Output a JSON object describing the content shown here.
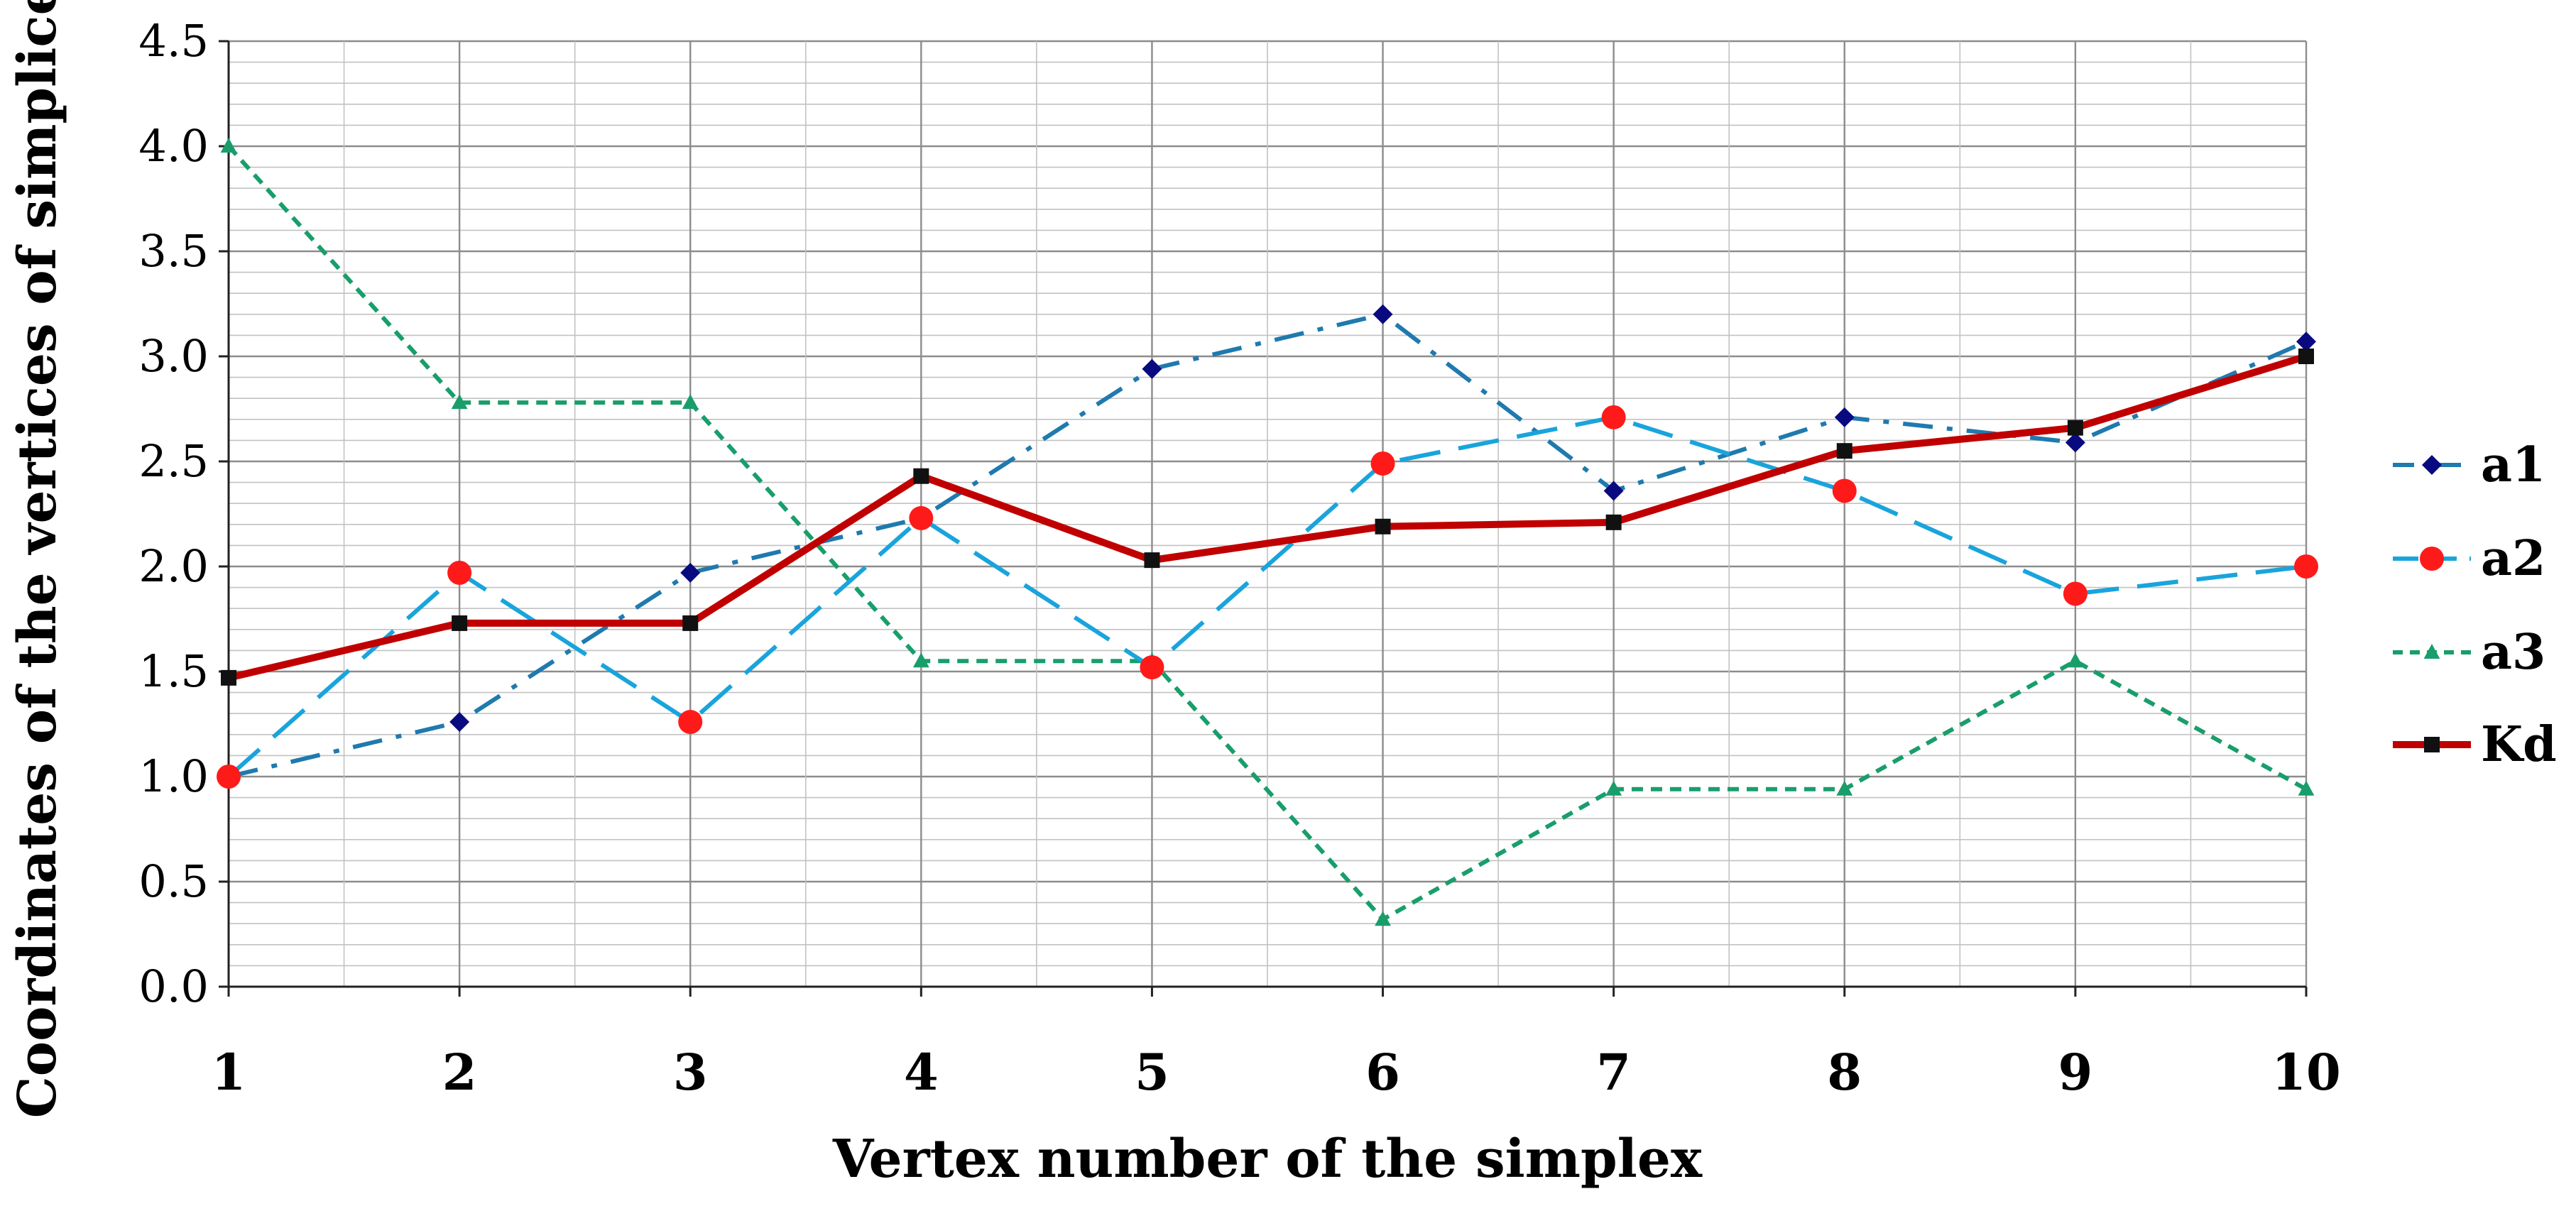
{
  "chart_data": {
    "type": "line",
    "title": "",
    "xlabel": "Vertex number of the simplex",
    "ylabel": "Coordinates of the vertices of simplices",
    "x": [
      1,
      2,
      3,
      4,
      5,
      6,
      7,
      8,
      9,
      10
    ],
    "x_tick_labels": [
      "1",
      "2",
      "3",
      "4",
      "5",
      "6",
      "7",
      "8",
      "9",
      "10"
    ],
    "ylim": [
      0,
      4.5
    ],
    "y_major_step": 0.5,
    "y_minor_step": 0.1,
    "y_tick_labels": [
      "0.0",
      "0.5",
      "1.0",
      "1.5",
      "2.0",
      "2.5",
      "3.0",
      "3.5",
      "4.0",
      "4.5"
    ],
    "grid": true,
    "legend_position": "right",
    "series": [
      {
        "name": "a1",
        "values": [
          1.0,
          1.26,
          1.97,
          2.23,
          2.94,
          3.2,
          2.36,
          2.71,
          2.59,
          3.07
        ],
        "color": "#1F7AAE",
        "marker_color": "#0A0A80",
        "marker": "diamond",
        "dash": "dash-dot"
      },
      {
        "name": "a2",
        "values": [
          1.0,
          1.97,
          1.26,
          2.23,
          1.52,
          2.49,
          2.71,
          2.36,
          1.87,
          2.0
        ],
        "color": "#19A4DC",
        "marker_color": "#FF1A1A",
        "marker": "circle",
        "dash": "long-dash"
      },
      {
        "name": "a3",
        "values": [
          4.0,
          2.78,
          2.78,
          1.55,
          1.55,
          0.32,
          0.94,
          0.94,
          1.55,
          0.94
        ],
        "color": "#199E6B",
        "marker_color": "#199E6B",
        "marker": "triangle",
        "dash": "dotted"
      },
      {
        "name": "Kd",
        "values": [
          1.47,
          1.73,
          1.73,
          2.43,
          2.03,
          2.19,
          2.21,
          2.55,
          2.66,
          3.0
        ],
        "color": "#C00000",
        "marker_color": "#111111",
        "marker": "square",
        "dash": "solid"
      }
    ]
  }
}
